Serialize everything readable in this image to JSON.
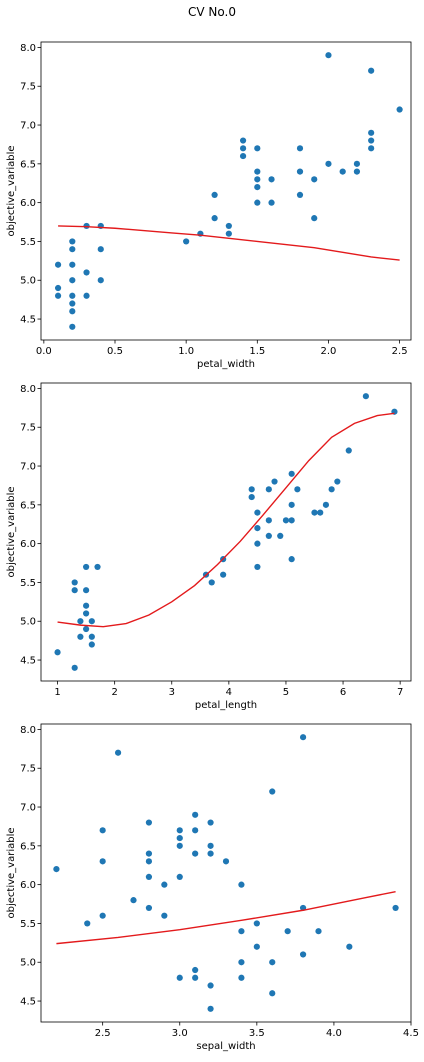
{
  "figure": {
    "title": "CV No.0"
  },
  "colors": {
    "scatter": "#1f77b4",
    "fit": "#e31a1c"
  },
  "chart_data": [
    {
      "type": "scatter",
      "xlabel": "petal_width",
      "ylabel": "objective_variable",
      "xlim": [
        -0.02,
        2.58
      ],
      "ylim": [
        4.23,
        8.07
      ],
      "xticks": [
        0.0,
        0.5,
        1.0,
        1.5,
        2.0,
        2.5
      ],
      "yticks": [
        4.5,
        5.0,
        5.5,
        6.0,
        6.5,
        7.0,
        7.5,
        8.0
      ],
      "points": [
        [
          0.1,
          5.2
        ],
        [
          0.1,
          4.9
        ],
        [
          0.1,
          4.8
        ],
        [
          0.2,
          5.5
        ],
        [
          0.2,
          5.4
        ],
        [
          0.2,
          5.2
        ],
        [
          0.2,
          5.0
        ],
        [
          0.2,
          4.8
        ],
        [
          0.2,
          4.7
        ],
        [
          0.2,
          4.6
        ],
        [
          0.2,
          4.4
        ],
        [
          0.3,
          5.7
        ],
        [
          0.3,
          5.1
        ],
        [
          0.3,
          4.8
        ],
        [
          0.4,
          5.7
        ],
        [
          0.4,
          5.4
        ],
        [
          0.4,
          5.0
        ],
        [
          1.0,
          5.5
        ],
        [
          1.1,
          5.6
        ],
        [
          1.2,
          6.1
        ],
        [
          1.2,
          5.8
        ],
        [
          1.3,
          5.7
        ],
        [
          1.3,
          5.6
        ],
        [
          1.4,
          6.8
        ],
        [
          1.4,
          6.7
        ],
        [
          1.4,
          6.6
        ],
        [
          1.5,
          6.7
        ],
        [
          1.5,
          6.4
        ],
        [
          1.5,
          6.3
        ],
        [
          1.5,
          6.2
        ],
        [
          1.5,
          6.0
        ],
        [
          1.6,
          6.3
        ],
        [
          1.6,
          6.0
        ],
        [
          1.8,
          6.7
        ],
        [
          1.8,
          6.4
        ],
        [
          1.8,
          6.1
        ],
        [
          1.9,
          6.3
        ],
        [
          1.9,
          5.8
        ],
        [
          2.0,
          7.9
        ],
        [
          2.0,
          6.5
        ],
        [
          2.1,
          6.4
        ],
        [
          2.2,
          6.5
        ],
        [
          2.2,
          6.4
        ],
        [
          2.3,
          7.7
        ],
        [
          2.3,
          6.9
        ],
        [
          2.3,
          6.8
        ],
        [
          2.3,
          6.7
        ],
        [
          2.5,
          7.2
        ]
      ],
      "fit_line": [
        [
          0.1,
          5.7
        ],
        [
          0.3,
          5.69
        ],
        [
          0.5,
          5.67
        ],
        [
          0.7,
          5.64
        ],
        [
          0.9,
          5.61
        ],
        [
          1.1,
          5.58
        ],
        [
          1.3,
          5.54
        ],
        [
          1.5,
          5.5
        ],
        [
          1.7,
          5.46
        ],
        [
          1.9,
          5.42
        ],
        [
          2.1,
          5.36
        ],
        [
          2.3,
          5.3
        ],
        [
          2.5,
          5.26
        ]
      ]
    },
    {
      "type": "scatter",
      "xlabel": "petal_length",
      "ylabel": "objective_variable",
      "xlim": [
        0.71,
        7.19
      ],
      "ylim": [
        4.23,
        8.07
      ],
      "xticks": [
        1,
        2,
        3,
        4,
        5,
        6,
        7
      ],
      "yticks": [
        4.5,
        5.0,
        5.5,
        6.0,
        6.5,
        7.0,
        7.5,
        8.0
      ],
      "points": [
        [
          1.0,
          4.6
        ],
        [
          1.3,
          5.5
        ],
        [
          1.3,
          5.4
        ],
        [
          1.3,
          4.4
        ],
        [
          1.4,
          5.0
        ],
        [
          1.4,
          4.8
        ],
        [
          1.5,
          5.7
        ],
        [
          1.5,
          5.4
        ],
        [
          1.5,
          5.2
        ],
        [
          1.5,
          5.1
        ],
        [
          1.5,
          4.9
        ],
        [
          1.6,
          5.0
        ],
        [
          1.6,
          4.8
        ],
        [
          1.6,
          4.7
        ],
        [
          1.7,
          5.7
        ],
        [
          3.6,
          5.6
        ],
        [
          3.7,
          5.5
        ],
        [
          3.9,
          5.8
        ],
        [
          3.9,
          5.6
        ],
        [
          4.4,
          6.7
        ],
        [
          4.4,
          6.6
        ],
        [
          4.5,
          6.4
        ],
        [
          4.5,
          6.2
        ],
        [
          4.5,
          6.0
        ],
        [
          4.5,
          5.7
        ],
        [
          4.7,
          6.7
        ],
        [
          4.7,
          6.3
        ],
        [
          4.7,
          6.1
        ],
        [
          4.8,
          6.8
        ],
        [
          4.9,
          6.1
        ],
        [
          5.0,
          6.3
        ],
        [
          5.1,
          6.9
        ],
        [
          5.1,
          6.5
        ],
        [
          5.1,
          6.3
        ],
        [
          5.1,
          5.8
        ],
        [
          5.2,
          6.7
        ],
        [
          5.5,
          6.4
        ],
        [
          5.6,
          6.4
        ],
        [
          5.7,
          6.5
        ],
        [
          5.8,
          6.7
        ],
        [
          5.9,
          6.8
        ],
        [
          6.1,
          7.2
        ],
        [
          6.4,
          7.9
        ],
        [
          6.9,
          7.7
        ]
      ],
      "fit_line": [
        [
          1.0,
          4.99
        ],
        [
          1.4,
          4.95
        ],
        [
          1.8,
          4.93
        ],
        [
          2.2,
          4.97
        ],
        [
          2.6,
          5.08
        ],
        [
          3.0,
          5.25
        ],
        [
          3.4,
          5.46
        ],
        [
          3.8,
          5.73
        ],
        [
          4.2,
          6.03
        ],
        [
          4.6,
          6.37
        ],
        [
          5.0,
          6.72
        ],
        [
          5.4,
          7.07
        ],
        [
          5.8,
          7.37
        ],
        [
          6.2,
          7.55
        ],
        [
          6.6,
          7.65
        ],
        [
          6.9,
          7.68
        ]
      ]
    },
    {
      "type": "scatter",
      "xlabel": "sepal_width",
      "ylabel": "objective_variable",
      "xlim": [
        2.1,
        4.5
      ],
      "ylim": [
        4.23,
        8.07
      ],
      "xticks": [
        2.5,
        3.0,
        3.5,
        4.0,
        4.5
      ],
      "yticks": [
        4.5,
        5.0,
        5.5,
        6.0,
        6.5,
        7.0,
        7.5,
        8.0
      ],
      "points": [
        [
          2.2,
          6.2
        ],
        [
          2.4,
          5.5
        ],
        [
          2.5,
          6.7
        ],
        [
          2.5,
          6.3
        ],
        [
          2.5,
          5.6
        ],
        [
          2.6,
          7.7
        ],
        [
          2.7,
          5.8
        ],
        [
          2.8,
          6.8
        ],
        [
          2.8,
          6.4
        ],
        [
          2.8,
          6.3
        ],
        [
          2.8,
          6.1
        ],
        [
          2.8,
          5.7
        ],
        [
          2.9,
          6.0
        ],
        [
          2.9,
          5.6
        ],
        [
          3.0,
          6.7
        ],
        [
          3.0,
          6.6
        ],
        [
          3.0,
          6.5
        ],
        [
          3.0,
          6.1
        ],
        [
          3.0,
          4.8
        ],
        [
          3.1,
          6.9
        ],
        [
          3.1,
          6.7
        ],
        [
          3.1,
          6.4
        ],
        [
          3.1,
          4.9
        ],
        [
          3.1,
          4.8
        ],
        [
          3.2,
          6.8
        ],
        [
          3.2,
          6.5
        ],
        [
          3.2,
          6.4
        ],
        [
          3.2,
          4.7
        ],
        [
          3.2,
          4.4
        ],
        [
          3.3,
          6.3
        ],
        [
          3.4,
          6.0
        ],
        [
          3.4,
          5.4
        ],
        [
          3.4,
          5.0
        ],
        [
          3.4,
          4.8
        ],
        [
          3.5,
          5.5
        ],
        [
          3.5,
          5.2
        ],
        [
          3.6,
          7.2
        ],
        [
          3.6,
          5.0
        ],
        [
          3.6,
          4.6
        ],
        [
          3.7,
          5.4
        ],
        [
          3.8,
          7.9
        ],
        [
          3.8,
          5.7
        ],
        [
          3.8,
          5.1
        ],
        [
          3.9,
          5.4
        ],
        [
          4.1,
          5.2
        ],
        [
          4.4,
          5.7
        ]
      ],
      "fit_line": [
        [
          2.2,
          5.24
        ],
        [
          2.6,
          5.32
        ],
        [
          3.0,
          5.42
        ],
        [
          3.4,
          5.54
        ],
        [
          3.8,
          5.67
        ],
        [
          4.2,
          5.83
        ],
        [
          4.4,
          5.91
        ]
      ]
    }
  ]
}
